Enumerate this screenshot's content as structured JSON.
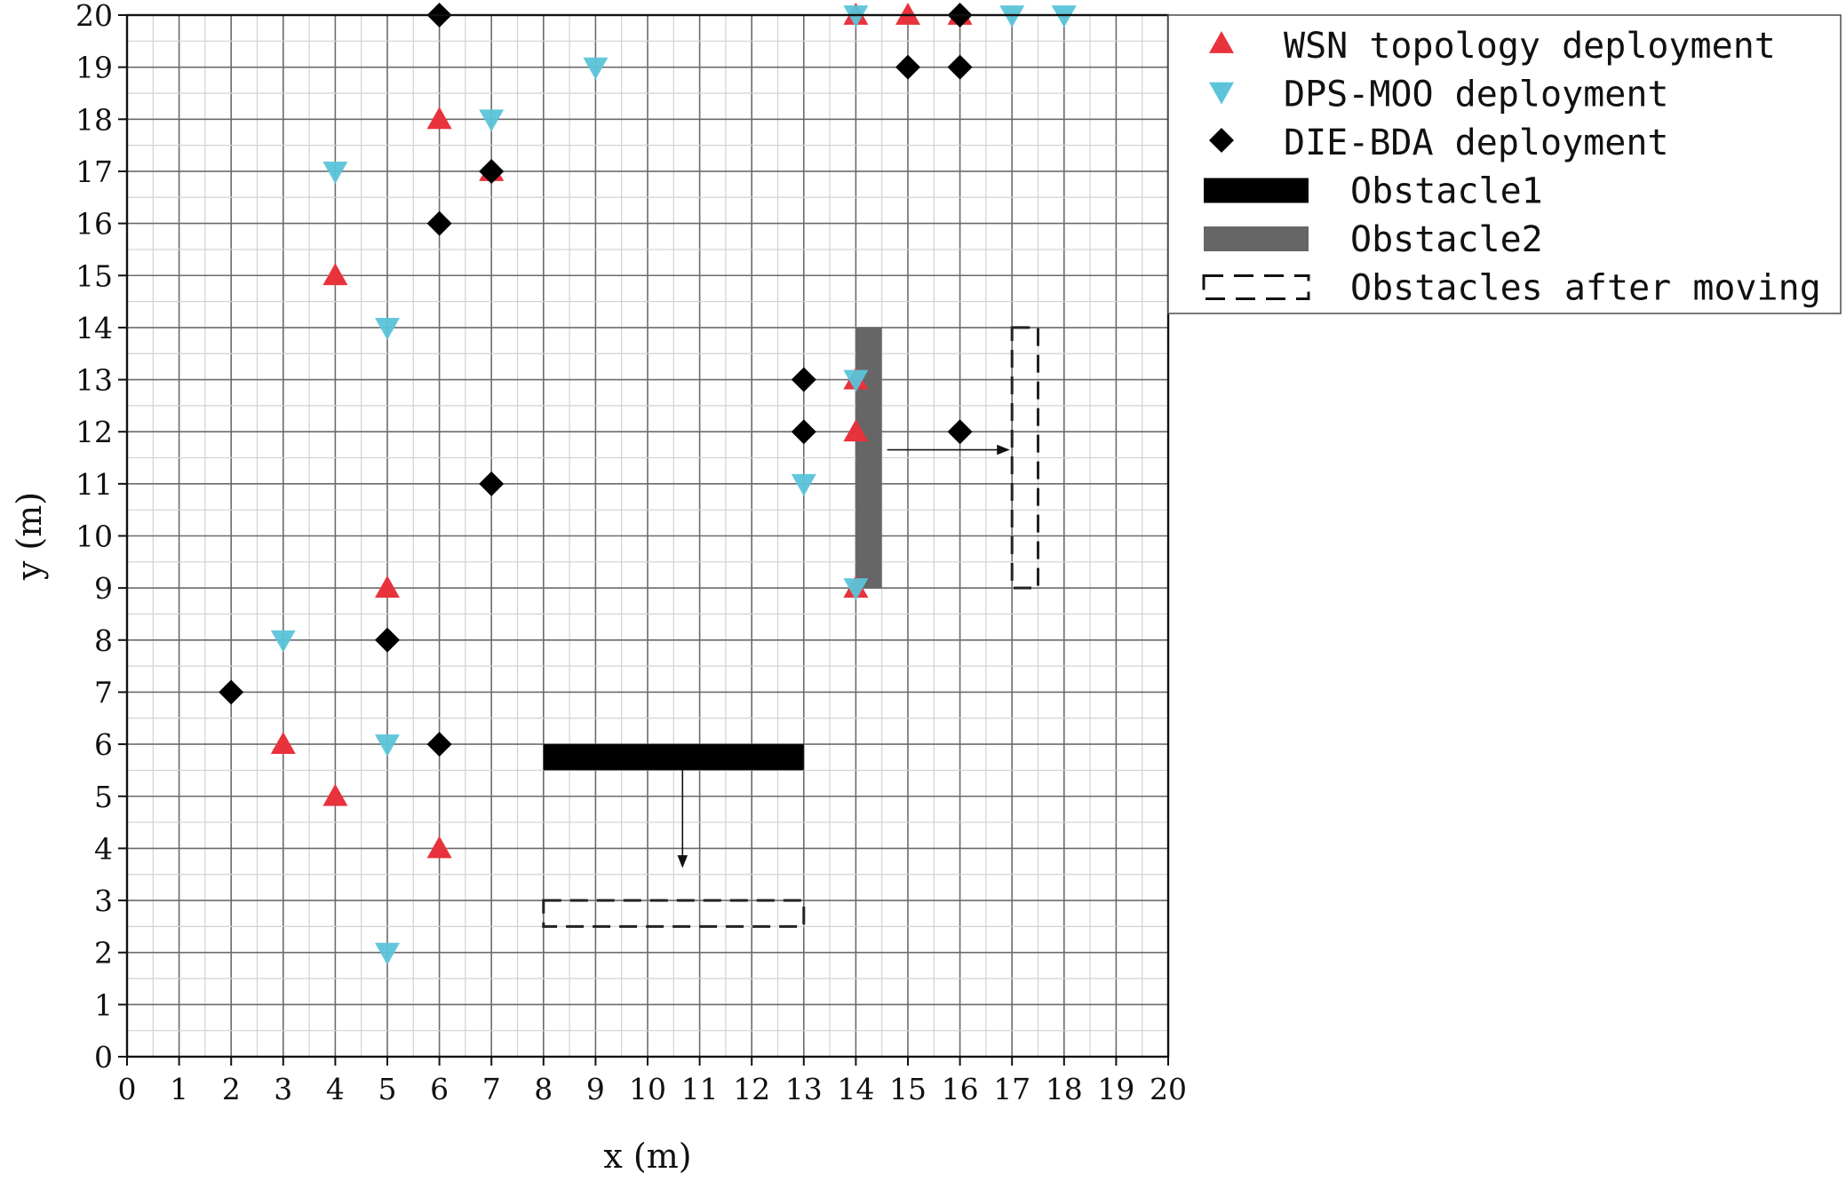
{
  "chart_data": {
    "type": "scatter",
    "xlabel": "x (m)",
    "ylabel": "y (m)",
    "xlim": [
      0,
      20
    ],
    "ylim": [
      0,
      20
    ],
    "xticks": [
      "0",
      "1",
      "2",
      "3",
      "4",
      "5",
      "6",
      "7",
      "8",
      "9",
      "10",
      "11",
      "12",
      "13",
      "14",
      "15",
      "16",
      "17",
      "18",
      "19",
      "20"
    ],
    "yticks": [
      "0",
      "1",
      "2",
      "3",
      "4",
      "5",
      "6",
      "7",
      "8",
      "9",
      "10",
      "11",
      "12",
      "13",
      "14",
      "15",
      "16",
      "17",
      "18",
      "19",
      "20"
    ],
    "grid": true,
    "legend_position": "top-right",
    "series": [
      {
        "name": "WSN topology deployment",
        "marker": "triangle-up",
        "color": "#e8323c",
        "points": [
          [
            4,
            15
          ],
          [
            6,
            18
          ],
          [
            7,
            17
          ],
          [
            5,
            9
          ],
          [
            3,
            6
          ],
          [
            4,
            5
          ],
          [
            6,
            4
          ],
          [
            14,
            13
          ],
          [
            14,
            12
          ],
          [
            14,
            9
          ],
          [
            14,
            20
          ],
          [
            15,
            20
          ],
          [
            16,
            20
          ]
        ]
      },
      {
        "name": "DPS-MOO deployment",
        "marker": "triangle-down",
        "color": "#5bc4d9",
        "points": [
          [
            4,
            17
          ],
          [
            7,
            18
          ],
          [
            9,
            19
          ],
          [
            5,
            14
          ],
          [
            3,
            8
          ],
          [
            5,
            6
          ],
          [
            5,
            2
          ],
          [
            13,
            11
          ],
          [
            14,
            13
          ],
          [
            14,
            9
          ],
          [
            14,
            20
          ],
          [
            17,
            20
          ],
          [
            18,
            20
          ]
        ]
      },
      {
        "name": "DIE-BDA deployment",
        "marker": "diamond",
        "color": "#000000",
        "points": [
          [
            6,
            20
          ],
          [
            7,
            17
          ],
          [
            6,
            16
          ],
          [
            7,
            11
          ],
          [
            5,
            8
          ],
          [
            2,
            7
          ],
          [
            6,
            6
          ],
          [
            13,
            13
          ],
          [
            13,
            12
          ],
          [
            15,
            19
          ],
          [
            16,
            19
          ],
          [
            16,
            20
          ],
          [
            16,
            12
          ]
        ]
      }
    ],
    "obstacles": [
      {
        "name": "Obstacle1",
        "color": "#000000",
        "x": [
          8,
          13
        ],
        "y": [
          5.5,
          6
        ],
        "moved_to": {
          "x": [
            8,
            13
          ],
          "y": [
            2.5,
            3
          ]
        }
      },
      {
        "name": "Obstacle2",
        "color": "#666666",
        "x": [
          14,
          14.5
        ],
        "y": [
          9,
          14
        ],
        "moved_to": {
          "x": [
            17,
            17.5
          ],
          "y": [
            9,
            14
          ]
        }
      }
    ],
    "legend": [
      {
        "label": "WSN topology deployment",
        "kind": "triangle-up",
        "color": "#e8323c"
      },
      {
        "label": "DPS-MOO deployment",
        "kind": "triangle-down",
        "color": "#5bc4d9"
      },
      {
        "label": "DIE-BDA deployment",
        "kind": "diamond",
        "color": "#000000"
      },
      {
        "label": "Obstacle1",
        "kind": "bar",
        "color": "#000000"
      },
      {
        "label": "Obstacle2",
        "kind": "bar",
        "color": "#666666"
      },
      {
        "label": "Obstacles after moving",
        "kind": "dashed",
        "color": "#000000"
      }
    ]
  }
}
